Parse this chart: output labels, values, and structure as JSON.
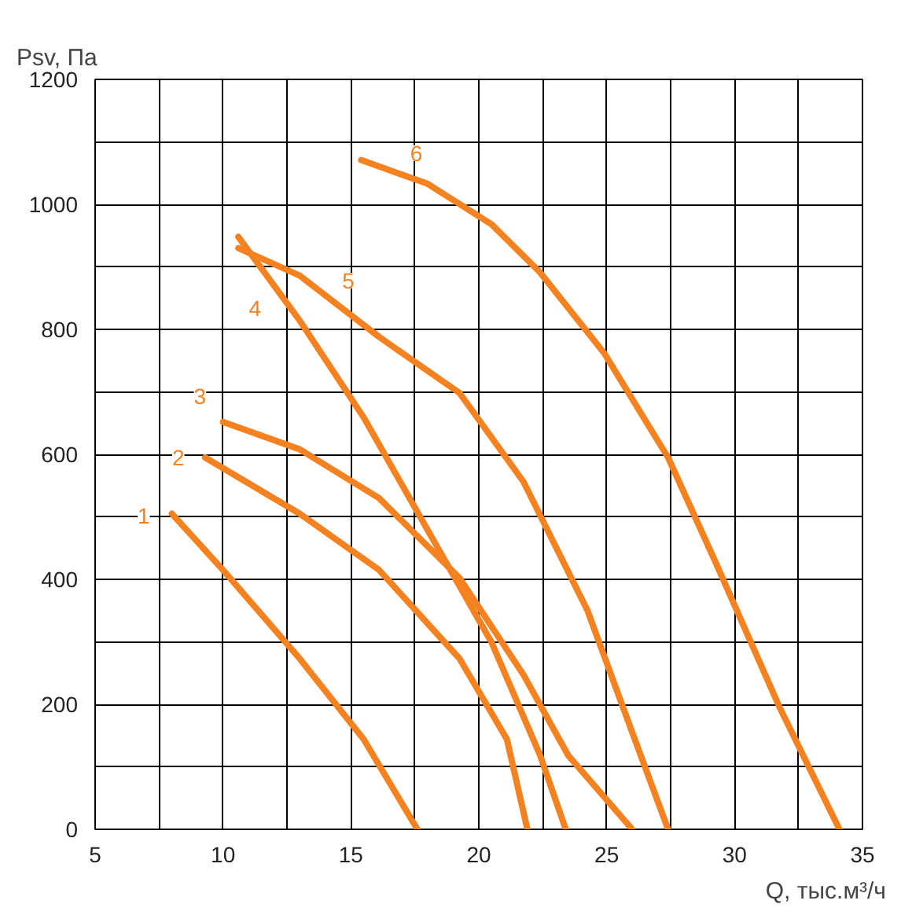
{
  "chart_data": {
    "type": "line",
    "xlabel": "Q, тыс.м³/ч",
    "ylabel": "Psv, Па",
    "xlim": [
      5,
      35
    ],
    "ylim": [
      0,
      1200
    ],
    "xticks": [
      5,
      10,
      15,
      20,
      25,
      30,
      35
    ],
    "yticks": [
      0,
      200,
      400,
      600,
      800,
      1000,
      1200
    ],
    "grid": true,
    "line_style": "solid",
    "marker": "none",
    "series": [
      {
        "color": "#f58220",
        "x": [
          8,
          10,
          13,
          15.5,
          17.6
        ],
        "values": [
          505,
          415,
          273,
          144,
          0
        ]
      },
      {
        "color": "#f58220",
        "x": [
          9.3,
          13,
          16.1,
          19.25,
          21.1,
          21.9
        ],
        "values": [
          595,
          505,
          415,
          273,
          144,
          0
        ]
      },
      {
        "color": "#f58220",
        "x": [
          10,
          13,
          16.1,
          19.25,
          21.75,
          23.5,
          26
        ],
        "values": [
          652,
          608,
          530,
          402,
          247,
          118,
          0
        ]
      },
      {
        "color": "#f58220",
        "x": [
          10.6,
          13,
          15.5,
          18,
          20.5,
          22.4,
          23.4
        ],
        "values": [
          948,
          814,
          659,
          479,
          299,
          118,
          0
        ]
      },
      {
        "color": "#f58220",
        "x": [
          10.6,
          13,
          16.1,
          19.25,
          21.75,
          24.25,
          26.1,
          27.4
        ],
        "values": [
          930,
          886,
          788,
          698,
          556,
          350,
          144,
          0
        ]
      },
      {
        "color": "#f58220",
        "x": [
          15.4,
          18,
          20.5,
          22.4,
          24.9,
          27.4,
          29.25,
          31.75,
          34.1
        ],
        "values": [
          1071,
          1033,
          968,
          891,
          762,
          595,
          428,
          196,
          0
        ]
      }
    ],
    "annotations": [
      {
        "text": "1",
        "x": 6.9,
        "y": 502
      },
      {
        "text": "2",
        "x": 8.25,
        "y": 595
      },
      {
        "text": "3",
        "x": 9.1,
        "y": 693
      },
      {
        "text": "4",
        "x": 11.25,
        "y": 834
      },
      {
        "text": "5",
        "x": 14.9,
        "y": 878
      },
      {
        "text": "6",
        "x": 17.56,
        "y": 1082
      }
    ]
  }
}
